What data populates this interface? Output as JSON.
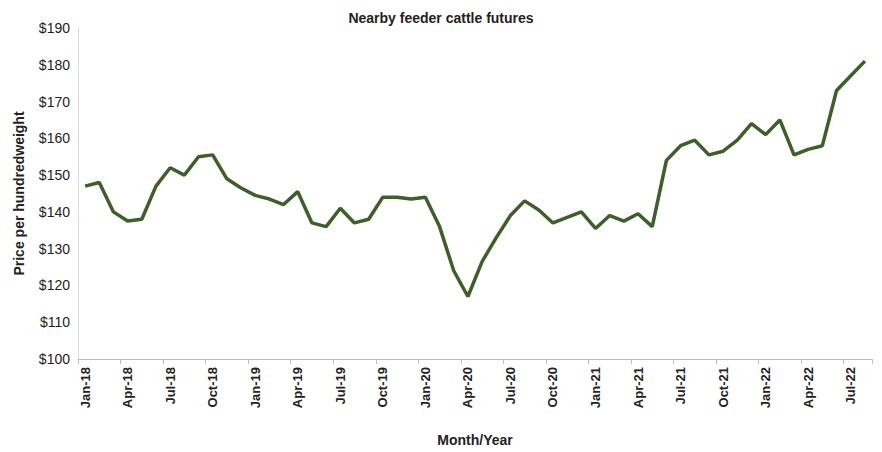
{
  "chart_data": {
    "type": "line",
    "title": "Nearby feeder cattle futures",
    "x_label": "Month/Year",
    "y_label": "Price per hundredweight",
    "categories": [
      "Jan-18",
      null,
      null,
      "Apr-18",
      null,
      null,
      "Jul-18",
      null,
      null,
      "Oct-18",
      null,
      null,
      "Jan-19",
      null,
      null,
      "Apr-19",
      null,
      null,
      "Jul-19",
      null,
      null,
      "Oct-19",
      null,
      null,
      "Jan-20",
      null,
      null,
      "Apr-20",
      null,
      null,
      "Jul-20",
      null,
      null,
      "Oct-20",
      null,
      null,
      "Jan-21",
      null,
      null,
      "Apr-21",
      null,
      null,
      "Jul-21",
      null,
      null,
      "Oct-21",
      null,
      null,
      "Jan-22",
      null,
      null,
      "Apr-22",
      null,
      null,
      "Jul-22",
      null
    ],
    "values": [
      147,
      148,
      140,
      137.5,
      138,
      147,
      152,
      150,
      155,
      155.5,
      149,
      146.5,
      144.5,
      143.5,
      142,
      145.5,
      137,
      136,
      141,
      137,
      138,
      144,
      144,
      143.5,
      144,
      136,
      124,
      117,
      126.5,
      133,
      139,
      143,
      140.5,
      137,
      138.5,
      140,
      135.5,
      139,
      137.5,
      139.5,
      136,
      154,
      158,
      159.5,
      155.5,
      156.5,
      159.5,
      164,
      161,
      165,
      155.5,
      157,
      158,
      173,
      177,
      181
    ],
    "color": "#3d5f2a",
    "ylim": [
      100,
      190
    ],
    "yticks": [
      {
        "value": 100,
        "label": "$100"
      },
      {
        "value": 110,
        "label": "$110"
      },
      {
        "value": 120,
        "label": "$120"
      },
      {
        "value": 130,
        "label": "$130"
      },
      {
        "value": 140,
        "label": "$140"
      },
      {
        "value": 150,
        "label": "$150"
      },
      {
        "value": 160,
        "label": "$160"
      },
      {
        "value": 170,
        "label": "$170"
      },
      {
        "value": 180,
        "label": "$180"
      },
      {
        "value": 190,
        "label": "$190"
      }
    ],
    "grid": false
  }
}
